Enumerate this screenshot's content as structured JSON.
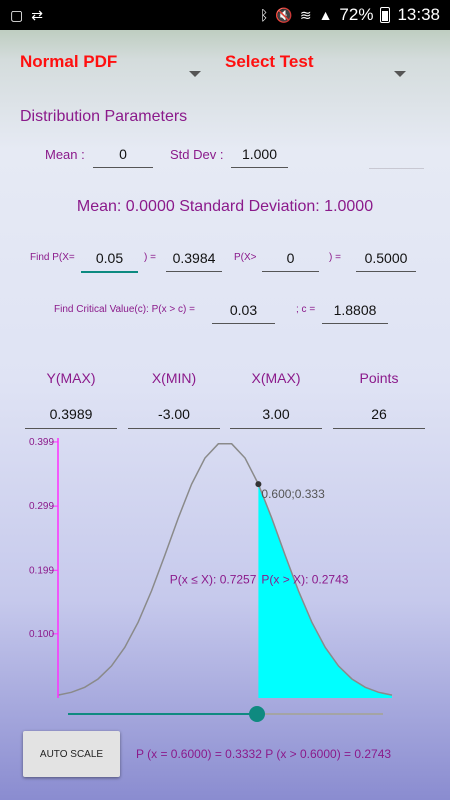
{
  "status_bar": {
    "battery": "72%",
    "time": "13:38"
  },
  "spinners": {
    "distribution": "Normal PDF",
    "test": "Select Test"
  },
  "section_title": "Distribution Parameters",
  "params": {
    "mean_label": "Mean :",
    "mean_value": "0",
    "sd_label": "Std Dev :",
    "sd_value": "1.000"
  },
  "summary": "Mean: 0.0000 Standard Deviation: 1.0000",
  "find_p": {
    "lt_label": "Find P(X=",
    "lt_value": "0.05",
    "lt_eq": ") =",
    "lt_result": "0.3984",
    "gt_label": "P(X>",
    "gt_value": "0",
    "gt_eq": ") =",
    "gt_result": "0.5000"
  },
  "critical": {
    "label": "Find Critical Value(c): P(x > c) =",
    "value": "0.03",
    "c_label": "; c =",
    "c_result": "1.8808"
  },
  "axis": {
    "headers": [
      "Y(MAX)",
      "X(MIN)",
      "X(MAX)",
      "Points"
    ],
    "values": [
      "0.3989",
      "-3.00",
      "3.00",
      "26"
    ]
  },
  "chart_data": {
    "type": "area",
    "x_min": -3.0,
    "x_max": 3.0,
    "y_max": 0.3989,
    "points": 26,
    "marker": {
      "x": 0.6,
      "y": 0.333,
      "label": "0.600;0.333"
    },
    "yticks": [
      {
        "value": 0.399,
        "label": "0.399"
      },
      {
        "value": 0.299,
        "label": "0.299"
      },
      {
        "value": 0.199,
        "label": "0.199"
      },
      {
        "value": 0.1,
        "label": "0.100"
      }
    ],
    "left_area_label": "P(x ≤ X): 0.7257",
    "right_area_label": "P(x > X): 0.2743",
    "colors": {
      "curve": "#8a8a8a",
      "fill": "#00ffff",
      "axis": "#ff30ff",
      "left_text": "#8b1a8b"
    }
  },
  "slider": {
    "value": 0.6,
    "min": -3.0,
    "max": 3.0
  },
  "autoscale_label": "AUTO SCALE",
  "result_text": "P (x = 0.6000) = 0.3332 P (x > 0.6000) = 0.2743"
}
